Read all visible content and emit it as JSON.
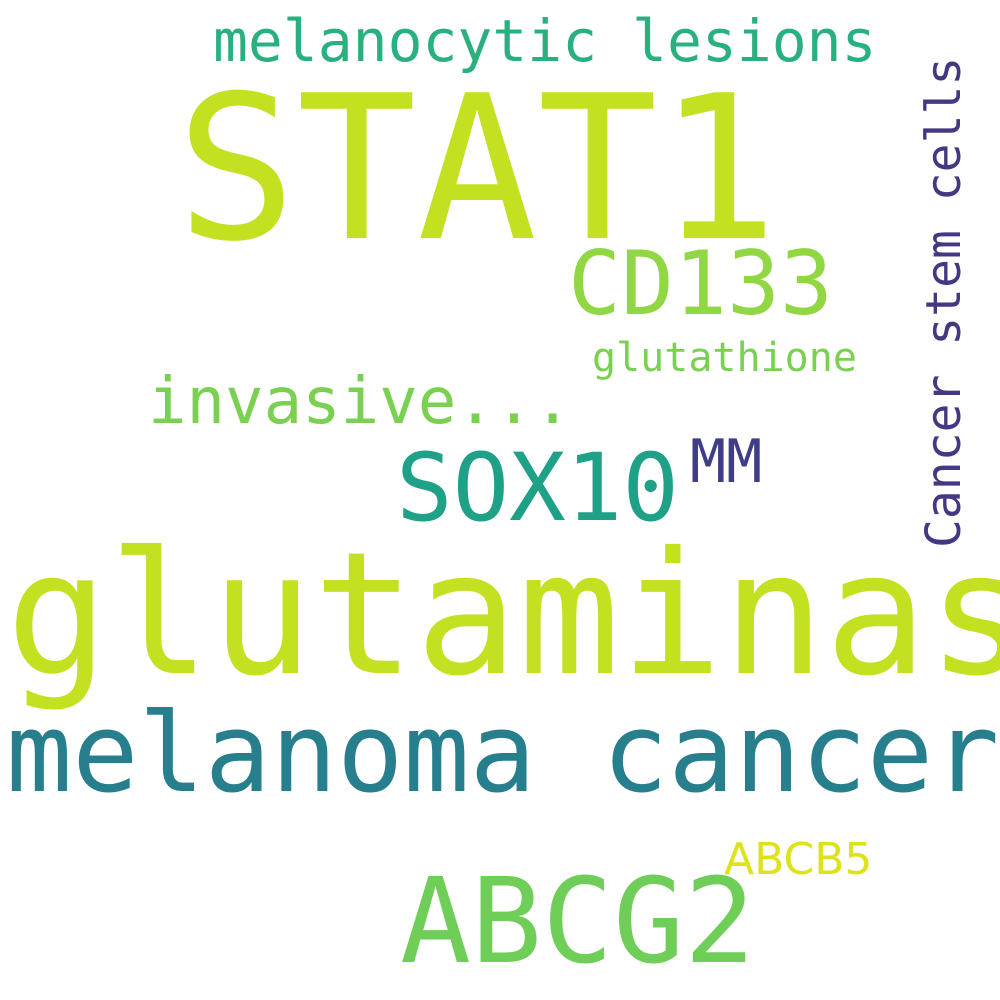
{
  "words": {
    "stat1": {
      "text": "STAT1",
      "color": "#c3e021"
    },
    "melanocytic_lesions": {
      "text": "melanocytic lesions",
      "color": "#2ab07f"
    },
    "cd133": {
      "text": "CD133",
      "color": "#90d743"
    },
    "cancer_stem_cells": {
      "text": "Cancer stem cells",
      "color": "#453882"
    },
    "glutathione": {
      "text": "glutathione",
      "color": "#7ad151"
    },
    "invasive": {
      "text": "invasive...",
      "color": "#7ad151"
    },
    "sox10": {
      "text": "SOX10",
      "color": "#1fa187"
    },
    "mm": {
      "text": "MM",
      "color": "#3f3d87"
    },
    "glutaminase": {
      "text": "glutaminase",
      "color": "#c3e021"
    },
    "melanoma_cancer": {
      "text": "melanoma cancer",
      "color": "#277f8e"
    },
    "abcb5": {
      "text": "ABCB5",
      "color": "#dde318"
    },
    "abcg2": {
      "text": "ABCG2",
      "color": "#6ece58"
    }
  }
}
